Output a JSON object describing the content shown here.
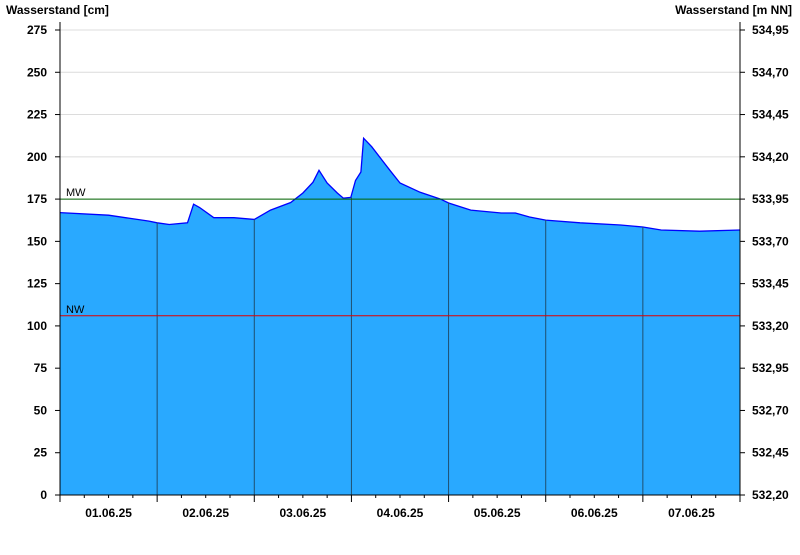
{
  "chart_data": {
    "type": "area",
    "ylabel_left": "Wasserstand [cm]",
    "ylabel_right": "Wasserstand [m NN]",
    "ylim": [
      0,
      275
    ],
    "yticks_left": [
      "0",
      "25",
      "50",
      "75",
      "100",
      "125",
      "150",
      "175",
      "200",
      "225",
      "250",
      "275"
    ],
    "yticks_right": [
      "532,20",
      "532,45",
      "532,70",
      "532,95",
      "533,20",
      "533,45",
      "533,70",
      "533,95",
      "534,20",
      "534,45",
      "534,70",
      "534,95"
    ],
    "xlim": [
      "2025-06-01T00:00",
      "2025-06-08T00:00"
    ],
    "xticks": [
      "01.06.25",
      "02.06.25",
      "03.06.25",
      "04.06.25",
      "05.06.25",
      "06.06.25",
      "07.06.25"
    ],
    "grid": true,
    "reference_lines": [
      {
        "label": "MW",
        "value": 175,
        "color": "#006400"
      },
      {
        "label": "NW",
        "value": 106,
        "color": "#e00000"
      }
    ],
    "colors": {
      "fill": "#29a9ff",
      "line": "#0000ff",
      "day_lines": "#1f4f6f"
    },
    "series": [
      {
        "points": [
          [
            "2025-06-01T00:00",
            167
          ],
          [
            "2025-06-01T12:00",
            165.5
          ],
          [
            "2025-06-01T22:00",
            162
          ],
          [
            "2025-06-02T00:00",
            161
          ],
          [
            "2025-06-02T03:00",
            160
          ],
          [
            "2025-06-02T07:30",
            161
          ],
          [
            "2025-06-02T09:00",
            172
          ],
          [
            "2025-06-02T10:30",
            170
          ],
          [
            "2025-06-02T14:00",
            164
          ],
          [
            "2025-06-02T19:00",
            164
          ],
          [
            "2025-06-03T00:00",
            163
          ],
          [
            "2025-06-03T04:00",
            168.5
          ],
          [
            "2025-06-03T09:00",
            173
          ],
          [
            "2025-06-03T12:00",
            178.6
          ],
          [
            "2025-06-03T14:30",
            185
          ],
          [
            "2025-06-03T16:00",
            192
          ],
          [
            "2025-06-03T18:00",
            184.5
          ],
          [
            "2025-06-03T20:30",
            178.6
          ],
          [
            "2025-06-03T22:00",
            175.6
          ],
          [
            "2025-06-03T23:50",
            176
          ],
          [
            "2025-06-04T01:00",
            186
          ],
          [
            "2025-06-04T02:20",
            191
          ],
          [
            "2025-06-04T03:00",
            211
          ],
          [
            "2025-06-04T05:00",
            206
          ],
          [
            "2025-06-04T09:30",
            192
          ],
          [
            "2025-06-04T12:00",
            184.5
          ],
          [
            "2025-06-04T17:00",
            179
          ],
          [
            "2025-06-04T22:00",
            175
          ],
          [
            "2025-06-05T00:00",
            172.7
          ],
          [
            "2025-06-05T05:30",
            168.5
          ],
          [
            "2025-06-05T13:00",
            166.8
          ],
          [
            "2025-06-05T16:30",
            166.8
          ],
          [
            "2025-06-05T20:00",
            164.4
          ],
          [
            "2025-06-06T00:00",
            162.6
          ],
          [
            "2025-06-06T08:30",
            161
          ],
          [
            "2025-06-06T18:30",
            159.7
          ],
          [
            "2025-06-07T00:00",
            158.5
          ],
          [
            "2025-06-07T04:30",
            156.7
          ],
          [
            "2025-06-07T14:00",
            156
          ],
          [
            "2025-06-08T00:00",
            156.7
          ]
        ]
      }
    ]
  }
}
